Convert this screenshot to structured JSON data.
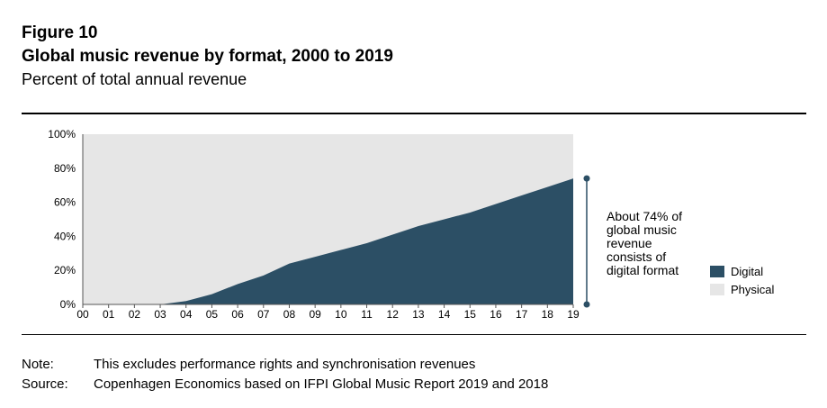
{
  "figure_label": "Figure 10",
  "chart_data": {
    "type": "area",
    "title": "Global music revenue by format, 2000 to 2019",
    "subtitle": "Percent of total annual revenue",
    "x": [
      "00",
      "01",
      "02",
      "03",
      "04",
      "05",
      "06",
      "07",
      "08",
      "09",
      "10",
      "11",
      "12",
      "13",
      "14",
      "15",
      "16",
      "17",
      "18",
      "19"
    ],
    "series": [
      {
        "name": "Digital",
        "color": "#2c4f65",
        "values": [
          0,
          0,
          0,
          0,
          2,
          6,
          12,
          17,
          24,
          28,
          32,
          36,
          41,
          46,
          50,
          54,
          59,
          64,
          69,
          74
        ]
      },
      {
        "name": "Physical",
        "color": "#e6e6e6",
        "values": [
          100,
          100,
          100,
          100,
          98,
          94,
          88,
          83,
          76,
          72,
          68,
          64,
          59,
          54,
          50,
          46,
          41,
          36,
          31,
          26
        ]
      }
    ],
    "yticks": [
      "0%",
      "20%",
      "40%",
      "60%",
      "80%",
      "100%"
    ],
    "ylim": [
      0,
      100
    ],
    "stacked": true,
    "legend": "right",
    "grid": false,
    "annotation": [
      "About 74% of",
      "global music",
      "revenue",
      "consists of",
      "digital format"
    ]
  },
  "footer": {
    "note_label": "Note:",
    "note_text": "This excludes performance rights and synchronisation revenues",
    "source_label": "Source:",
    "source_text": "Copenhagen Economics based on IFPI Global Music Report 2019 and 2018"
  }
}
